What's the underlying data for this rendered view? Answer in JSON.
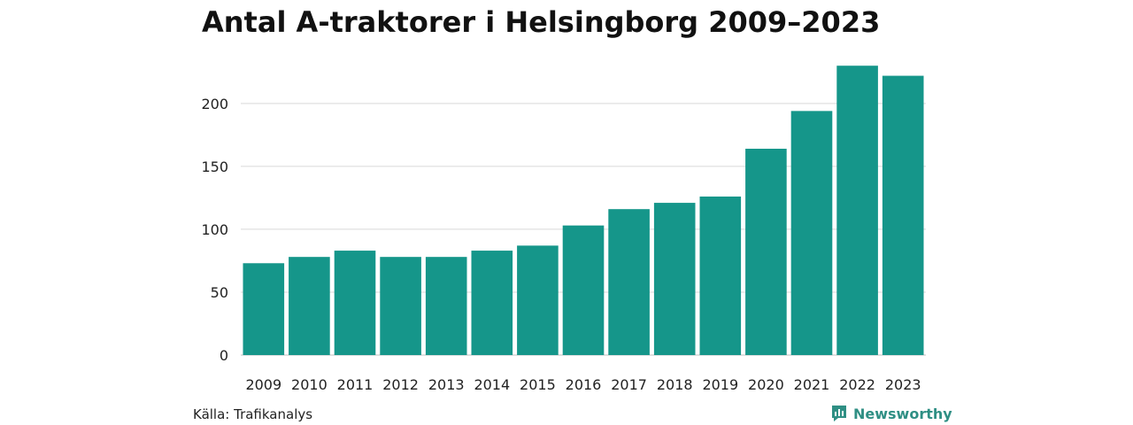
{
  "chart_data": {
    "type": "bar",
    "title": "Antal A-traktorer i Helsingborg 2009–2023",
    "categories": [
      "2009",
      "2010",
      "2011",
      "2012",
      "2013",
      "2014",
      "2015",
      "2016",
      "2017",
      "2018",
      "2019",
      "2020",
      "2021",
      "2022",
      "2023"
    ],
    "values": [
      73,
      78,
      83,
      78,
      78,
      83,
      87,
      103,
      116,
      121,
      126,
      164,
      194,
      230,
      222
    ],
    "ylim": [
      0,
      240
    ],
    "yticks": [
      0,
      50,
      100,
      150,
      200
    ],
    "xlabel": "",
    "ylabel": "",
    "grid": true,
    "bar_color": "#15968a"
  },
  "footer": {
    "source": "Källa: Trafikanalys",
    "brand": "Newsworthy"
  },
  "colors": {
    "brand": "#2f8f84",
    "grid": "#d9d9d9"
  }
}
